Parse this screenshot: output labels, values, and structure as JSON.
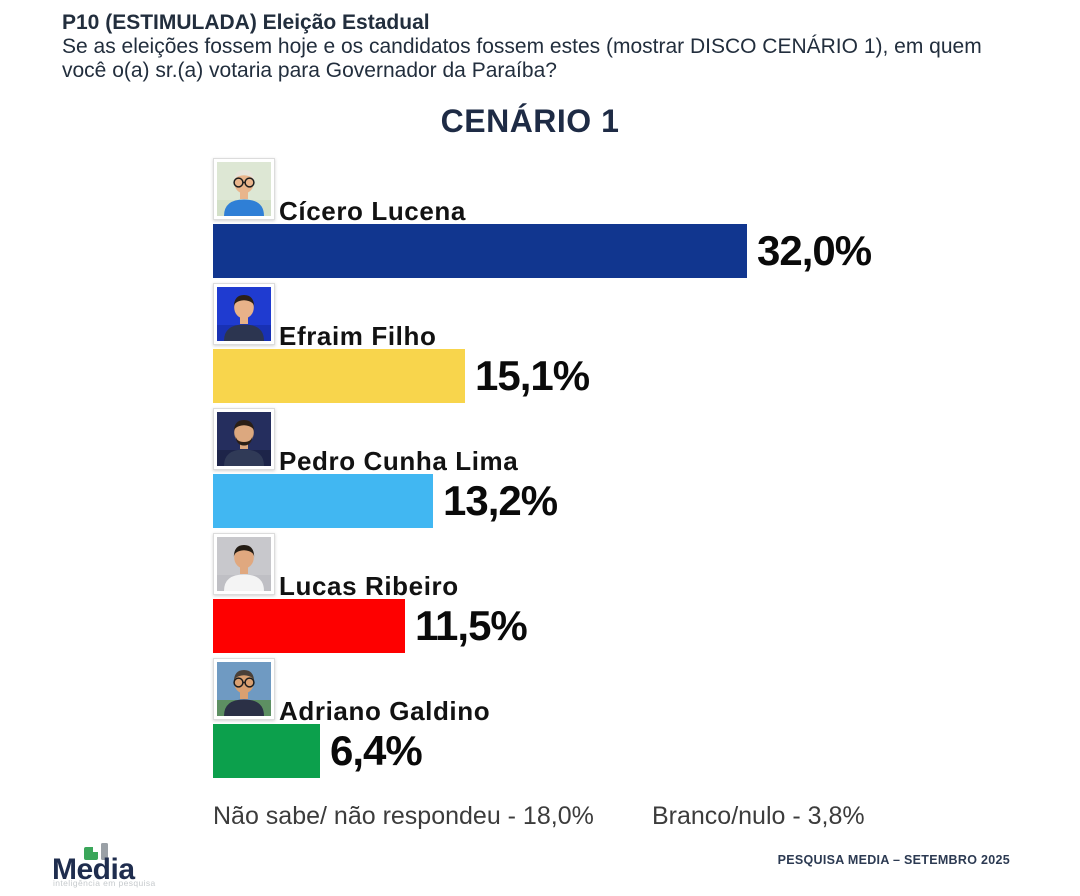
{
  "header": {
    "question_code": "P10 (ESTIMULADA) Eleição Estadual",
    "question_text": "Se as eleições fossem hoje e os candidatos fossem estes (mostrar DISCO CENÁRIO 1), em quem você o(a) sr.(a) votaria para Governador da Paraíba?"
  },
  "title": "CENÁRIO 1",
  "chart_data": {
    "type": "bar",
    "orientation": "horizontal",
    "unit": "%",
    "title": "CENÁRIO 1",
    "categories": [
      "Cícero Lucena",
      "Efraim Filho",
      "Pedro Cunha Lima",
      "Lucas Ribeiro",
      "Adriano Galdino"
    ],
    "values": [
      32.0,
      15.1,
      13.2,
      11.5,
      6.4
    ],
    "value_labels": [
      "32,0%",
      "15,1%",
      "13,2%",
      "11,5%",
      "6,4%"
    ],
    "bar_colors": [
      "#11368f",
      "#f8d54c",
      "#41b7f2",
      "#fe0000",
      "#0ca04c"
    ],
    "xlim": [
      0,
      35
    ],
    "grid": false,
    "legend": false,
    "other_responses": [
      {
        "label": "Não sabe/ não respondeu",
        "value": 18.0
      },
      {
        "label": "Branco/nulo",
        "value": 3.8
      }
    ]
  },
  "candidates": [
    {
      "name": "Cícero Lucena",
      "value": 32.0,
      "label": "32,0%",
      "color": "#11368f",
      "photo": {
        "alt": "older-man-glasses-blue-shirt",
        "bg": "#dde7d4",
        "bg2": "#d3e0c8",
        "skin": "#e9b58c",
        "hair": "#e6e4da",
        "shirt": "#2f7fd6",
        "glasses": true,
        "beard": false
      }
    },
    {
      "name": "Efraim Filho",
      "value": 15.1,
      "label": "15,1%",
      "color": "#f8d54c",
      "photo": {
        "alt": "man-dark-suit-blue-background",
        "bg": "#1f3bd0",
        "bg2": "#1831b4",
        "skin": "#e8b289",
        "hair": "#2b2018",
        "shirt": "#2c3550",
        "glasses": false,
        "beard": false
      }
    },
    {
      "name": "Pedro Cunha Lima",
      "value": 13.2,
      "label": "13,2%",
      "color": "#41b7f2",
      "photo": {
        "alt": "bearded-man-dark-navy-background",
        "bg": "#252e5e",
        "bg2": "#1d2449",
        "skin": "#dca87f",
        "hair": "#2a1e16",
        "shirt": "#303a57",
        "glasses": false,
        "beard": true
      }
    },
    {
      "name": "Lucas Ribeiro",
      "value": 11.5,
      "label": "11,5%",
      "color": "#fe0000",
      "photo": {
        "alt": "man-white-shirt-gray-background",
        "bg": "#c8c8cc",
        "bg2": "#bfbfc4",
        "skin": "#e0a87f",
        "hair": "#241c14",
        "shirt": "#f4f4f4",
        "glasses": false,
        "beard": false
      }
    },
    {
      "name": "Adriano Galdino",
      "value": 6.4,
      "label": "6,4%",
      "color": "#0ca04c",
      "photo": {
        "alt": "older-man-glasses-dark-suit-outdoor",
        "bg": "#6f9ac2",
        "bg2": "#5d8f62",
        "skin": "#d9a071",
        "hair": "#4a4038",
        "shirt": "#2b3046",
        "glasses": true,
        "beard": false
      }
    }
  ],
  "footnotes": {
    "dont_know": "Não sabe/ não respondeu - 18,0%",
    "blank_null": "Branco/nulo - 3,8%"
  },
  "footer": {
    "logo_text": "Media",
    "logo_tagline": "inteligência em pesquisa",
    "source": "PESQUISA MEDIA – SETEMBRO 2025"
  }
}
